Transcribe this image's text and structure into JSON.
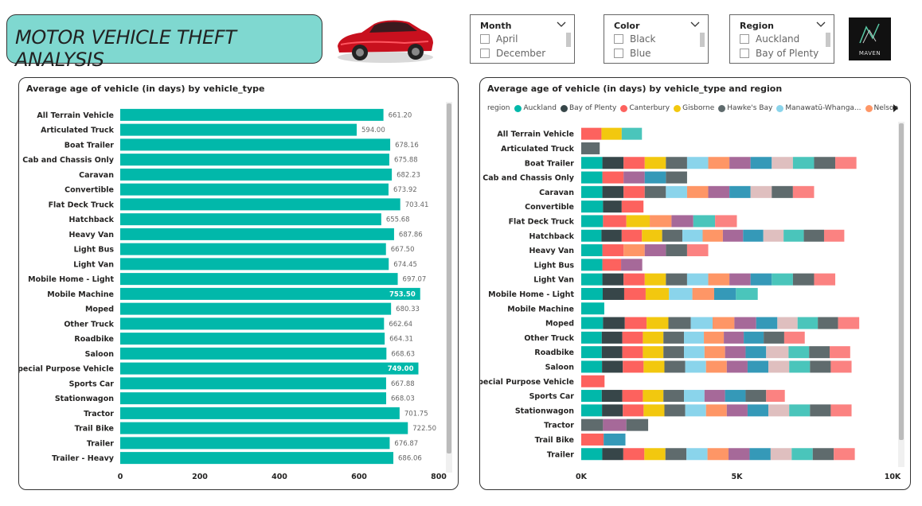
{
  "header": {
    "title": "MOTOR VEHICLE THEFT ANALYSIS",
    "logo_text": "MAVEN"
  },
  "car_image": {
    "icon": "red-sports-car-icon"
  },
  "slicers": [
    {
      "header": "Month",
      "options": [
        "April",
        "December"
      ]
    },
    {
      "header": "Color",
      "options": [
        "Black",
        "Blue"
      ]
    },
    {
      "header": "Region",
      "options": [
        "Auckland",
        "Bay of Plenty"
      ]
    }
  ],
  "colors": {
    "teal": "#01b8aa",
    "regions": [
      "#01b8aa",
      "#374649",
      "#fd625e",
      "#f2c80f",
      "#5f6b6d",
      "#8ad4eb",
      "#fe9666",
      "#a66999",
      "#3599b8",
      "#dfbfbf",
      "#4ac5bb",
      "#5f6b6d",
      "#fb8281"
    ]
  },
  "left_chart": {
    "title": "Average age of vehicle (in days) by vehicle_type",
    "chart_data": {
      "type": "bar",
      "orientation": "horizontal",
      "title": "Average age of vehicle (in days) by vehicle_type",
      "categories": [
        "All Terrain Vehicle",
        "Articulated Truck",
        "Boat Trailer",
        "Cab and Chassis Only",
        "Caravan",
        "Convertible",
        "Flat Deck Truck",
        "Hatchback",
        "Heavy Van",
        "Light Bus",
        "Light Van",
        "Mobile Home - Light",
        "Mobile Machine",
        "Moped",
        "Other Truck",
        "Roadbike",
        "Saloon",
        "Special Purpose Vehicle",
        "Sports Car",
        "Stationwagon",
        "Tractor",
        "Trail Bike",
        "Trailer",
        "Trailer - Heavy"
      ],
      "values": [
        661.2,
        594.0,
        678.16,
        675.88,
        682.23,
        673.92,
        703.41,
        655.68,
        687.86,
        667.5,
        674.45,
        697.07,
        753.5,
        680.33,
        662.64,
        664.31,
        668.63,
        749.0,
        667.88,
        668.03,
        701.75,
        722.5,
        676.87,
        686.06
      ],
      "labels": [
        "661.20",
        "594.00",
        "678.16",
        "675.88",
        "682.23",
        "673.92",
        "703.41",
        "655.68",
        "687.86",
        "667.50",
        "674.45",
        "697.07",
        "753.50",
        "680.33",
        "662.64",
        "664.31",
        "668.63",
        "749.00",
        "667.88",
        "668.03",
        "701.75",
        "722.50",
        "676.87",
        "686.06"
      ],
      "xlim": [
        0,
        800
      ],
      "xticks": [
        "0",
        "200",
        "400",
        "600",
        "800"
      ],
      "xtick_values": [
        0,
        200,
        400,
        600,
        800
      ]
    }
  },
  "right_chart": {
    "title": "Average age of vehicle (in days) by vehicle_type and region",
    "legend_title": "region",
    "legend": [
      "Auckland",
      "Bay of Plenty",
      "Canterbury",
      "Gisborne",
      "Hawke's Bay",
      "Manawatū-Whanga...",
      "Nelson"
    ],
    "chart_data": {
      "type": "bar",
      "stacked": true,
      "orientation": "horizontal",
      "title": "Average age of vehicle (in days) by vehicle_type and region",
      "categories": [
        "All Terrain Vehicle",
        "Articulated Truck",
        "Boat Trailer",
        "Cab and Chassis Only",
        "Caravan",
        "Convertible",
        "Flat Deck Truck",
        "Hatchback",
        "Heavy Van",
        "Light Bus",
        "Light Van",
        "Mobile Home - Light",
        "Mobile Machine",
        "Moped",
        "Other Truck",
        "Roadbike",
        "Saloon",
        "Special Purpose Vehicle",
        "Sports Car",
        "Stationwagon",
        "Tractor",
        "Trail Bike",
        "Trailer"
      ],
      "segments": [
        [
          [
            2,
            650
          ],
          [
            3,
            650
          ],
          [
            10,
            650
          ]
        ],
        [
          [
            4,
            594
          ]
        ],
        [
          [
            0,
            680
          ],
          [
            1,
            680
          ],
          [
            2,
            680
          ],
          [
            3,
            680
          ],
          [
            4,
            680
          ],
          [
            5,
            680
          ],
          [
            6,
            680
          ],
          [
            7,
            680
          ],
          [
            8,
            680
          ],
          [
            9,
            680
          ],
          [
            10,
            680
          ],
          [
            11,
            680
          ],
          [
            12,
            680
          ]
        ],
        [
          [
            0,
            680
          ],
          [
            2,
            680
          ],
          [
            7,
            680
          ],
          [
            8,
            680
          ],
          [
            4,
            680
          ]
        ],
        [
          [
            0,
            680
          ],
          [
            1,
            680
          ],
          [
            2,
            680
          ],
          [
            11,
            680
          ],
          [
            5,
            680
          ],
          [
            6,
            680
          ],
          [
            7,
            680
          ],
          [
            8,
            680
          ],
          [
            9,
            680
          ],
          [
            4,
            680
          ],
          [
            12,
            680
          ]
        ],
        [
          [
            0,
            700
          ],
          [
            1,
            600
          ],
          [
            2,
            700
          ]
        ],
        [
          [
            0,
            700
          ],
          [
            2,
            750
          ],
          [
            3,
            750
          ],
          [
            6,
            700
          ],
          [
            7,
            700
          ],
          [
            10,
            700
          ],
          [
            12,
            700
          ]
        ],
        [
          [
            0,
            650
          ],
          [
            1,
            650
          ],
          [
            2,
            650
          ],
          [
            3,
            650
          ],
          [
            4,
            650
          ],
          [
            5,
            650
          ],
          [
            6,
            650
          ],
          [
            7,
            650
          ],
          [
            8,
            650
          ],
          [
            9,
            650
          ],
          [
            10,
            650
          ],
          [
            11,
            650
          ],
          [
            12,
            650
          ]
        ],
        [
          [
            0,
            680
          ],
          [
            2,
            680
          ],
          [
            6,
            680
          ],
          [
            7,
            680
          ],
          [
            4,
            680
          ],
          [
            12,
            680
          ]
        ],
        [
          [
            0,
            680
          ],
          [
            2,
            600
          ],
          [
            7,
            680
          ]
        ],
        [
          [
            0,
            680
          ],
          [
            1,
            680
          ],
          [
            2,
            680
          ],
          [
            3,
            680
          ],
          [
            4,
            680
          ],
          [
            5,
            680
          ],
          [
            6,
            680
          ],
          [
            7,
            680
          ],
          [
            8,
            680
          ],
          [
            10,
            680
          ],
          [
            11,
            680
          ],
          [
            12,
            680
          ]
        ],
        [
          [
            0,
            690
          ],
          [
            1,
            690
          ],
          [
            2,
            690
          ],
          [
            3,
            750
          ],
          [
            5,
            750
          ],
          [
            6,
            700
          ],
          [
            8,
            700
          ],
          [
            10,
            700
          ]
        ],
        [
          [
            0,
            740
          ]
        ],
        [
          [
            0,
            700
          ],
          [
            1,
            700
          ],
          [
            2,
            700
          ],
          [
            3,
            700
          ],
          [
            4,
            720
          ],
          [
            5,
            700
          ],
          [
            6,
            700
          ],
          [
            7,
            700
          ],
          [
            8,
            680
          ],
          [
            9,
            650
          ],
          [
            10,
            650
          ],
          [
            11,
            650
          ],
          [
            12,
            680
          ]
        ],
        [
          [
            0,
            660
          ],
          [
            1,
            660
          ],
          [
            2,
            660
          ],
          [
            3,
            660
          ],
          [
            4,
            660
          ],
          [
            5,
            640
          ],
          [
            6,
            640
          ],
          [
            7,
            640
          ],
          [
            8,
            640
          ],
          [
            11,
            660
          ],
          [
            12,
            660
          ]
        ],
        [
          [
            0,
            660
          ],
          [
            1,
            660
          ],
          [
            2,
            660
          ],
          [
            3,
            660
          ],
          [
            4,
            660
          ],
          [
            5,
            660
          ],
          [
            6,
            660
          ],
          [
            7,
            660
          ],
          [
            8,
            660
          ],
          [
            9,
            720
          ],
          [
            10,
            660
          ],
          [
            11,
            660
          ],
          [
            12,
            660
          ]
        ],
        [
          [
            0,
            668
          ],
          [
            1,
            668
          ],
          [
            2,
            668
          ],
          [
            3,
            668
          ],
          [
            4,
            668
          ],
          [
            5,
            668
          ],
          [
            6,
            668
          ],
          [
            7,
            668
          ],
          [
            8,
            668
          ],
          [
            9,
            668
          ],
          [
            10,
            668
          ],
          [
            11,
            668
          ],
          [
            12,
            668
          ]
        ],
        [
          [
            2,
            749
          ]
        ],
        [
          [
            0,
            660
          ],
          [
            1,
            660
          ],
          [
            2,
            660
          ],
          [
            3,
            660
          ],
          [
            4,
            660
          ],
          [
            5,
            660
          ],
          [
            7,
            660
          ],
          [
            8,
            660
          ],
          [
            11,
            660
          ],
          [
            12,
            600
          ]
        ],
        [
          [
            0,
            668
          ],
          [
            1,
            668
          ],
          [
            2,
            668
          ],
          [
            3,
            668
          ],
          [
            4,
            668
          ],
          [
            5,
            668
          ],
          [
            6,
            668
          ],
          [
            7,
            668
          ],
          [
            8,
            668
          ],
          [
            9,
            668
          ],
          [
            10,
            668
          ],
          [
            11,
            668
          ],
          [
            12,
            668
          ]
        ],
        [
          [
            4,
            700
          ],
          [
            7,
            750
          ],
          [
            11,
            700
          ]
        ],
        [
          [
            2,
            720
          ],
          [
            8,
            700
          ]
        ],
        [
          [
            0,
            676
          ],
          [
            1,
            676
          ],
          [
            2,
            676
          ],
          [
            3,
            676
          ],
          [
            4,
            676
          ],
          [
            5,
            676
          ],
          [
            6,
            676
          ],
          [
            7,
            676
          ],
          [
            8,
            676
          ],
          [
            9,
            676
          ],
          [
            10,
            676
          ],
          [
            11,
            676
          ],
          [
            12,
            676
          ]
        ]
      ],
      "xlim": [
        0,
        10000
      ],
      "xticks": [
        "0K",
        "5K",
        "10K"
      ],
      "xtick_values": [
        0,
        5000,
        10000
      ]
    }
  }
}
